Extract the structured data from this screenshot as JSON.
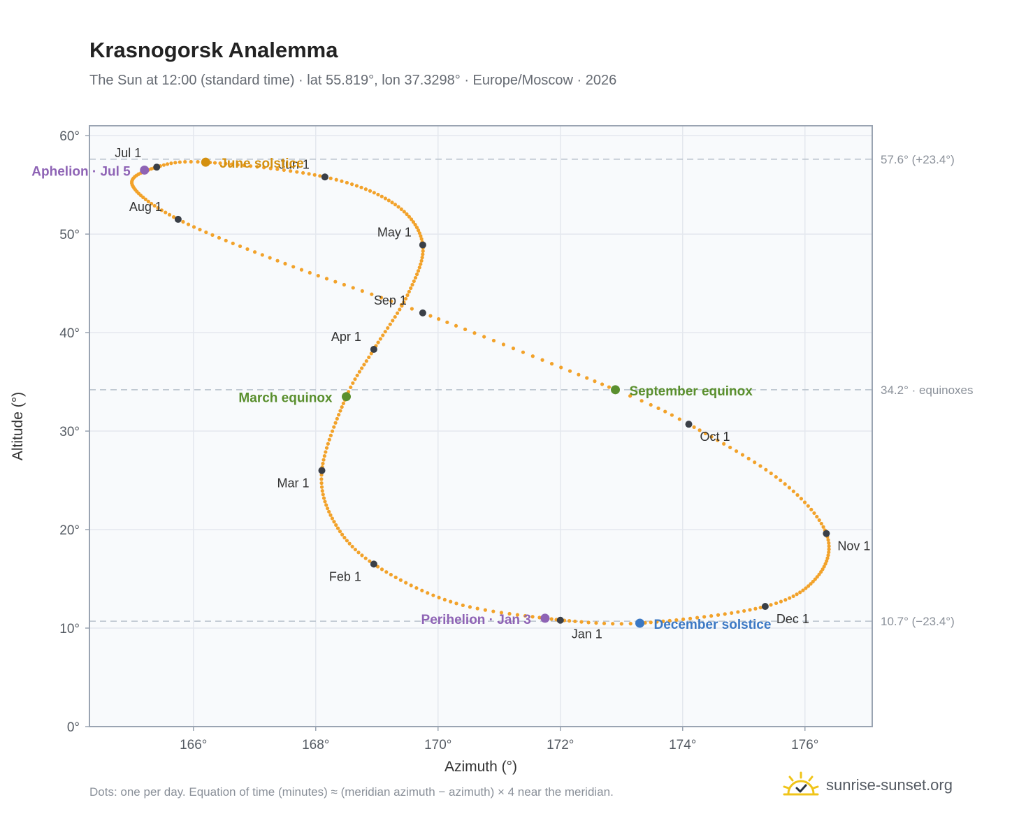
{
  "title": "Krasnogorsk Analemma",
  "subtitle": "The Sun at 12:00 (standard time) · lat 55.819°, lon 37.3298° · Europe/Moscow · 2026",
  "footnote": "Dots: one per day. Equation of time (minutes) ≈ (meridian azimuth − azimuth) × 4 near the meridian.",
  "brand": {
    "text": "sunrise-sunset.org",
    "icon": "sun-check-icon"
  },
  "colors": {
    "curve": "#f2a22a",
    "month_marker": "#3a3f47",
    "solstice_june": "#d4900f",
    "solstice_december": "#3b78c4",
    "equinox": "#5a8f2e",
    "apsis": "#8e63b5",
    "plot_bg": "#f8fafc",
    "grid": "#e4e8ee",
    "reference_line": "#b8c2cc",
    "frame": "#9aa4b2"
  },
  "chart_data": {
    "type": "scatter",
    "title": "Krasnogorsk Analemma",
    "xlabel": "Azimuth (°)",
    "ylabel": "Altitude (°)",
    "xlim": [
      164.3,
      177.1
    ],
    "ylim": [
      0,
      61
    ],
    "x_ticks": [
      166,
      168,
      170,
      172,
      174,
      176
    ],
    "x_tick_labels": [
      "166°",
      "168°",
      "170°",
      "172°",
      "174°",
      "176°"
    ],
    "y_ticks": [
      0,
      10,
      20,
      30,
      40,
      50,
      60
    ],
    "y_tick_labels": [
      "0°",
      "10°",
      "20°",
      "30°",
      "40°",
      "50°",
      "60°"
    ],
    "grid": true,
    "dots_per_day": true,
    "reference_lines": [
      {
        "y": 57.6,
        "label": "57.6° (+23.4°)"
      },
      {
        "y": 34.2,
        "label": "34.2° · equinoxes"
      },
      {
        "y": 10.7,
        "label": "10.7° (−23.4°)"
      }
    ],
    "month_markers": [
      {
        "label": "Jan 1",
        "day": 1,
        "azimuth": 172.0,
        "altitude": 10.8
      },
      {
        "label": "Feb 1",
        "day": 32,
        "azimuth": 168.95,
        "altitude": 16.5
      },
      {
        "label": "Mar 1",
        "day": 60,
        "azimuth": 168.1,
        "altitude": 26.0
      },
      {
        "label": "Apr 1",
        "day": 91,
        "azimuth": 168.95,
        "altitude": 38.3
      },
      {
        "label": "May 1",
        "day": 121,
        "azimuth": 169.75,
        "altitude": 48.9
      },
      {
        "label": "Jun 1",
        "day": 152,
        "azimuth": 168.15,
        "altitude": 55.8
      },
      {
        "label": "Jul 1",
        "day": 182,
        "azimuth": 165.4,
        "altitude": 56.8
      },
      {
        "label": "Aug 1",
        "day": 213,
        "azimuth": 165.75,
        "altitude": 51.5
      },
      {
        "label": "Sep 1",
        "day": 244,
        "azimuth": 169.75,
        "altitude": 42.0
      },
      {
        "label": "Oct 1",
        "day": 274,
        "azimuth": 174.1,
        "altitude": 30.7
      },
      {
        "label": "Nov 1",
        "day": 305,
        "azimuth": 176.35,
        "altitude": 19.6
      },
      {
        "label": "Dec 1",
        "day": 335,
        "azimuth": 175.35,
        "altitude": 12.2
      }
    ],
    "events": [
      {
        "label": "June solstice",
        "kind": "solstice_june",
        "azimuth": 166.2,
        "altitude": 57.3
      },
      {
        "label": "December solstice",
        "kind": "solstice_december",
        "azimuth": 173.3,
        "altitude": 10.5
      },
      {
        "label": "March equinox",
        "kind": "equinox",
        "azimuth": 168.5,
        "altitude": 33.5
      },
      {
        "label": "September equinox",
        "kind": "equinox",
        "azimuth": 172.9,
        "altitude": 34.2
      },
      {
        "label": "Perihelion · Jan 3",
        "kind": "apsis",
        "azimuth": 171.75,
        "altitude": 11.0
      },
      {
        "label": "Aphelion · Jul 5",
        "kind": "apsis",
        "azimuth": 165.2,
        "altitude": 56.5
      }
    ],
    "curve_guide_points": [
      {
        "day": 1,
        "azimuth": 172.0,
        "altitude": 10.8
      },
      {
        "day": 16,
        "azimuth": 170.3,
        "altitude": 12.5
      },
      {
        "day": 32,
        "azimuth": 168.95,
        "altitude": 16.5
      },
      {
        "day": 46,
        "azimuth": 168.3,
        "altitude": 20.8
      },
      {
        "day": 60,
        "azimuth": 168.1,
        "altitude": 26.0
      },
      {
        "day": 79,
        "azimuth": 168.5,
        "altitude": 33.5
      },
      {
        "day": 91,
        "azimuth": 168.95,
        "altitude": 38.3
      },
      {
        "day": 106,
        "azimuth": 169.5,
        "altitude": 43.8
      },
      {
        "day": 121,
        "azimuth": 169.75,
        "altitude": 48.9
      },
      {
        "day": 136,
        "azimuth": 169.3,
        "altitude": 53.0
      },
      {
        "day": 152,
        "azimuth": 168.15,
        "altitude": 55.8
      },
      {
        "day": 172,
        "azimuth": 166.2,
        "altitude": 57.3
      },
      {
        "day": 182,
        "azimuth": 165.4,
        "altitude": 56.8
      },
      {
        "day": 196,
        "azimuth": 165.0,
        "altitude": 55.0
      },
      {
        "day": 213,
        "azimuth": 165.75,
        "altitude": 51.5
      },
      {
        "day": 229,
        "azimuth": 167.5,
        "altitude": 47.0
      },
      {
        "day": 244,
        "azimuth": 169.75,
        "altitude": 42.0
      },
      {
        "day": 266,
        "azimuth": 172.9,
        "altitude": 34.2
      },
      {
        "day": 274,
        "azimuth": 174.1,
        "altitude": 30.7
      },
      {
        "day": 290,
        "azimuth": 175.6,
        "altitude": 25.0
      },
      {
        "day": 305,
        "azimuth": 176.35,
        "altitude": 19.6
      },
      {
        "day": 320,
        "azimuth": 176.2,
        "altitude": 15.2
      },
      {
        "day": 335,
        "azimuth": 175.35,
        "altitude": 12.2
      },
      {
        "day": 355,
        "azimuth": 173.3,
        "altitude": 10.5
      },
      {
        "day": 366,
        "azimuth": 172.0,
        "altitude": 10.8
      }
    ]
  }
}
